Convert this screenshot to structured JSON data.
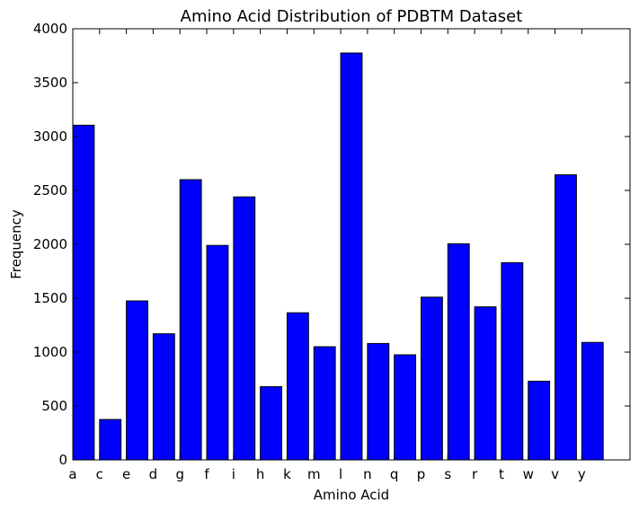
{
  "chart_data": {
    "type": "bar",
    "title": "Amino Acid Distribution of PDBTM Dataset",
    "xlabel": "Amino Acid",
    "ylabel": "Frequency",
    "categories": [
      "a",
      "c",
      "e",
      "d",
      "g",
      "f",
      "i",
      "h",
      "k",
      "m",
      "l",
      "n",
      "q",
      "p",
      "s",
      "r",
      "t",
      "w",
      "v",
      "y"
    ],
    "values": [
      3105,
      375,
      1475,
      1170,
      2600,
      1990,
      2440,
      680,
      1365,
      1050,
      3775,
      1080,
      975,
      1510,
      2005,
      1420,
      1830,
      730,
      2645,
      1090
    ],
    "ylim": [
      0,
      4000
    ],
    "xlim": [
      0,
      20.8
    ],
    "yticks": [
      0,
      500,
      1000,
      1500,
      2000,
      2500,
      3000,
      3500,
      4000
    ],
    "bar_color": "#0000ff",
    "grid": false,
    "legend": "none"
  }
}
